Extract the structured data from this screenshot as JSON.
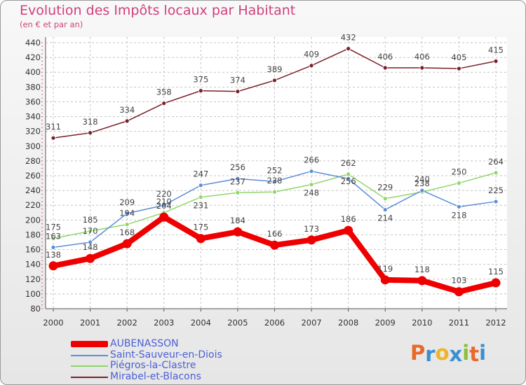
{
  "title": "Evolution des Impôts locaux par Habitant",
  "subtitle": "(en € et par an)",
  "logo": {
    "letters": [
      "P",
      "r",
      "o",
      "x",
      "i",
      "t",
      "i"
    ],
    "colors": [
      "#e8692a",
      "#3a8fd0",
      "#f0b32a",
      "#3a8fd0",
      "#8ac03c",
      "#e8692a",
      "#3a8fd0"
    ]
  },
  "chart_data": {
    "type": "line",
    "title": "Evolution des Impôts locaux par Habitant",
    "subtitle": "(en € et par an)",
    "x": [
      "2000",
      "2001",
      "2002",
      "2003",
      "2004",
      "2005",
      "2006",
      "2007",
      "2008",
      "2009",
      "2010",
      "2011",
      "2012"
    ],
    "ylim": [
      80,
      440
    ],
    "yticks": [
      80,
      100,
      120,
      140,
      160,
      180,
      200,
      220,
      240,
      260,
      280,
      300,
      320,
      340,
      360,
      380,
      400,
      420,
      440
    ],
    "grid": true,
    "legend_position": "bottom-left",
    "series": [
      {
        "name": "AUBENASSON",
        "color": "#ee0000",
        "values": [
          138,
          148,
          168,
          204,
          175,
          184,
          166,
          173,
          186,
          119,
          118,
          103,
          115
        ],
        "labels": [
          "138",
          "148",
          "168",
          "204",
          "175",
          "184",
          "166",
          "173",
          "186",
          "119",
          "118",
          "103",
          "115"
        ]
      },
      {
        "name": "Saint-Sauveur-en-Diois",
        "color": "#5b8ed6",
        "values": [
          163,
          170,
          209,
          220,
          247,
          256,
          252,
          266,
          256,
          214,
          240,
          218,
          225
        ],
        "labels": [
          "163",
          "170",
          "209",
          "220",
          "247",
          "256",
          "252",
          "266",
          "256",
          "214",
          "240",
          "218",
          "225"
        ]
      },
      {
        "name": "Piégros-la-Clastre",
        "color": "#8fd66b",
        "values": [
          175,
          185,
          194,
          210,
          231,
          237,
          238,
          248,
          262,
          229,
          238,
          250,
          264
        ],
        "labels": [
          "175",
          "185",
          "194",
          "210",
          "231",
          "237",
          "238",
          "248",
          "262",
          "229",
          "238",
          "250",
          "264"
        ]
      },
      {
        "name": "Mirabel-et-Blacons",
        "color": "#7a1f28",
        "values": [
          311,
          318,
          334,
          358,
          375,
          374,
          389,
          409,
          432,
          406,
          406,
          405,
          415
        ],
        "labels": [
          "311",
          "318",
          "334",
          "358",
          "375",
          "374",
          "389",
          "409",
          "432",
          "406",
          "406",
          "405",
          "415"
        ]
      }
    ]
  }
}
